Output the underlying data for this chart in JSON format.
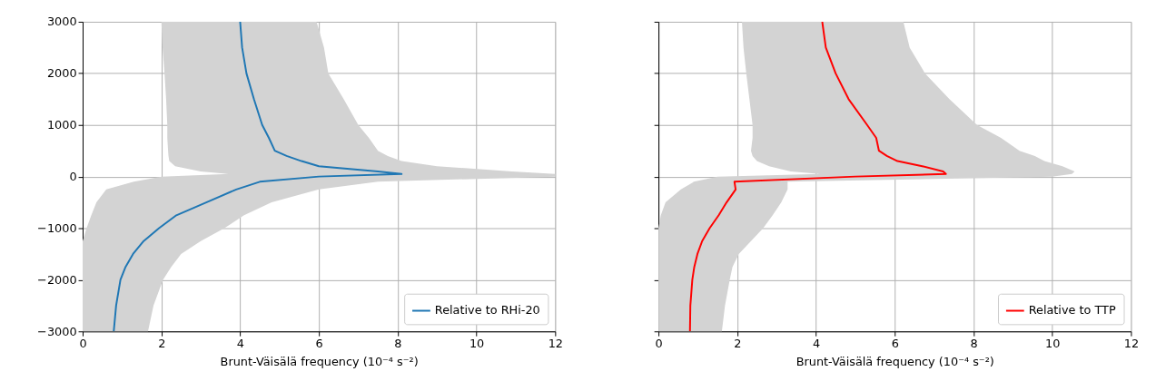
{
  "chart_data": [
    {
      "type": "line",
      "orientation": "horizontal",
      "xlabel": "Brunt-Väisälä frequency (10⁻⁴ s⁻²)",
      "xlim": [
        0,
        12
      ],
      "xticks": [
        0,
        2,
        4,
        6,
        8,
        10,
        12
      ],
      "ylim": [
        -3000,
        3000
      ],
      "yticks": [
        -3000,
        -2000,
        -1000,
        0,
        1000,
        2000,
        3000
      ],
      "grid": true,
      "legend": "bottom right",
      "x": [
        3000,
        2500,
        2000,
        1500,
        1000,
        750,
        500,
        400,
        300,
        200,
        100,
        50,
        0,
        -100,
        -250,
        -500,
        -750,
        -1000,
        -1250,
        -1500,
        -1750,
        -2000,
        -2500,
        -3000
      ],
      "series": [
        {
          "name": "Relative to RHi-20",
          "color": "#1f77b4",
          "values": [
            4.0,
            4.05,
            4.16,
            4.35,
            4.56,
            4.73,
            4.88,
            5.18,
            5.56,
            6.0,
            7.5,
            8.1,
            6.0,
            4.5,
            3.9,
            3.14,
            2.38,
            1.94,
            1.55,
            1.28,
            1.09,
            0.96,
            0.85,
            0.79
          ],
          "lower": [
            2.0,
            2.03,
            2.08,
            2.12,
            2.15,
            2.15,
            2.17,
            2.18,
            2.2,
            2.35,
            3.0,
            3.7,
            2.0,
            1.3,
            0.6,
            0.35,
            0.22,
            0.1,
            0,
            0,
            0,
            0,
            0,
            0
          ],
          "upper": [
            5.94,
            6.13,
            6.24,
            6.63,
            7.0,
            7.27,
            7.5,
            7.75,
            8.1,
            9.0,
            10.9,
            12,
            12,
            7.5,
            6.0,
            4.8,
            4.1,
            3.6,
            3.0,
            2.5,
            2.25,
            2.04,
            1.8,
            1.66
          ]
        }
      ]
    },
    {
      "type": "line",
      "orientation": "horizontal",
      "xlabel": "Brunt-Väisälä frequency (10⁻⁴ s⁻²)",
      "xlim": [
        0,
        12
      ],
      "xticks": [
        0,
        2,
        4,
        6,
        8,
        10,
        12
      ],
      "ylim": [
        -3000,
        3000
      ],
      "yticks": [
        -3000,
        -2000,
        -1000,
        0,
        1000,
        2000,
        3000
      ],
      "grid": true,
      "legend": "bottom right",
      "tick_labels": "x",
      "x": [
        3000,
        2500,
        2000,
        1500,
        1000,
        750,
        500,
        400,
        300,
        200,
        100,
        50,
        0,
        -100,
        -250,
        -500,
        -750,
        -1000,
        -1250,
        -1500,
        -1750,
        -2000,
        -2500,
        -3000
      ],
      "series": [
        {
          "name": "Relative to TTP",
          "color": "#ff0000",
          "values": [
            4.16,
            4.25,
            4.5,
            4.83,
            5.3,
            5.53,
            5.6,
            5.8,
            6.07,
            6.7,
            7.23,
            7.3,
            5.0,
            1.93,
            1.96,
            1.73,
            1.53,
            1.3,
            1.11,
            0.99,
            0.91,
            0.86,
            0.81,
            0.8
          ],
          "lower": [
            2.12,
            2.16,
            2.23,
            2.31,
            2.39,
            2.39,
            2.35,
            2.39,
            2.5,
            2.81,
            3.36,
            4.1,
            1.5,
            0.9,
            0.57,
            0.18,
            0.06,
            0,
            0,
            0,
            0,
            0,
            0,
            0
          ],
          "upper": [
            6.22,
            6.38,
            6.77,
            7.39,
            8.09,
            8.7,
            9.17,
            9.56,
            9.8,
            10.26,
            10.57,
            10.5,
            10.0,
            3.28,
            3.28,
            3.12,
            2.9,
            2.66,
            2.35,
            2.04,
            1.88,
            1.81,
            1.69,
            1.61
          ]
        }
      ]
    }
  ]
}
